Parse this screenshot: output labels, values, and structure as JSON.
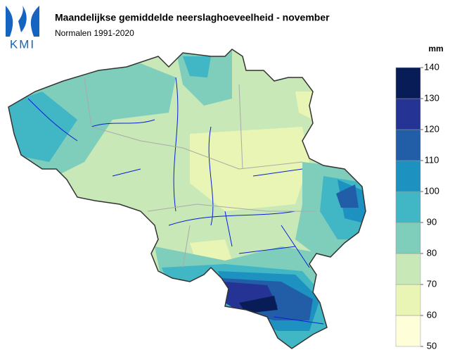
{
  "header": {
    "logo": "KMI",
    "title": "Maandelijkse gemiddelde neerslaghoeveelheid - november",
    "subtitle": "Normalen 1991-2020"
  },
  "legend": {
    "unit": "mm",
    "ticks": [
      50,
      60,
      70,
      80,
      90,
      100,
      110,
      120,
      130,
      140
    ],
    "colors": [
      "#fefed8",
      "#e8f5b4",
      "#c8e8b8",
      "#7fcdbb",
      "#41b6c4",
      "#1d91c0",
      "#225ea8",
      "#253494",
      "#081d58"
    ]
  }
}
